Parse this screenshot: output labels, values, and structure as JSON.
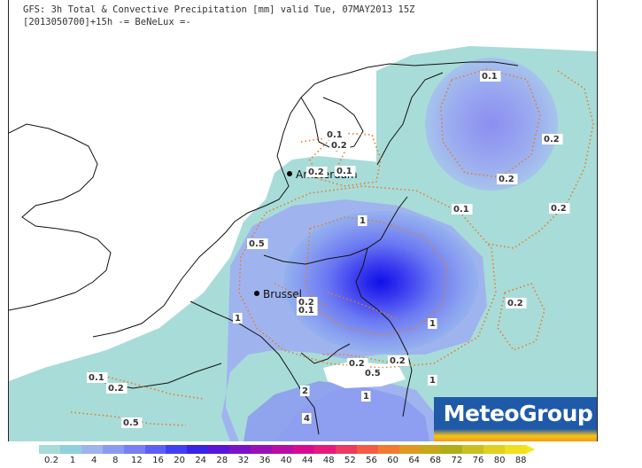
{
  "header": {
    "line1": "GFS: 3h Total & Convective Precipitation [mm] valid Tue, 07MAY2013 15Z",
    "line2": "[2013050700]+15h -= BeNeLux =-"
  },
  "cities": [
    {
      "name": "Amsterdam"
    },
    {
      "name": "Brussel"
    }
  ],
  "contour_labels": [
    "0.1",
    "0.2",
    "0.1",
    "0.2",
    "0.1",
    "0.2",
    "0.2",
    "0.1",
    "0.2",
    "0.5",
    "1",
    "0.2",
    "0.1",
    "1",
    "0.2",
    "1",
    "0.2",
    "0.5",
    "1",
    "0.1",
    "0.2",
    "2",
    "0.5",
    "4",
    "1",
    "0.2"
  ],
  "logo": {
    "text": "MeteoGroup"
  },
  "colorbar": {
    "labels": [
      "0.2",
      "1",
      "4",
      "8",
      "12",
      "16",
      "20",
      "24",
      "28",
      "32",
      "36",
      "40",
      "44",
      "48",
      "52",
      "56",
      "60",
      "64",
      "68",
      "72",
      "76",
      "80",
      "88"
    ],
    "colors": [
      "#a8dcd8",
      "#8fd0dc",
      "#9fb4ee",
      "#8b9af0",
      "#7a7ef2",
      "#5f5ef4",
      "#4040f2",
      "#3a22e6",
      "#5a16d8",
      "#7a12c8",
      "#9a10b8",
      "#b80ea6",
      "#d80c94",
      "#e61a7e",
      "#ec3a62",
      "#f25a46",
      "#f07a30",
      "#e09820",
      "#c8a818",
      "#b0ae18",
      "#c8c020",
      "#e0d020",
      "#f0e020"
    ],
    "arrow_color": "#f4e81a"
  }
}
